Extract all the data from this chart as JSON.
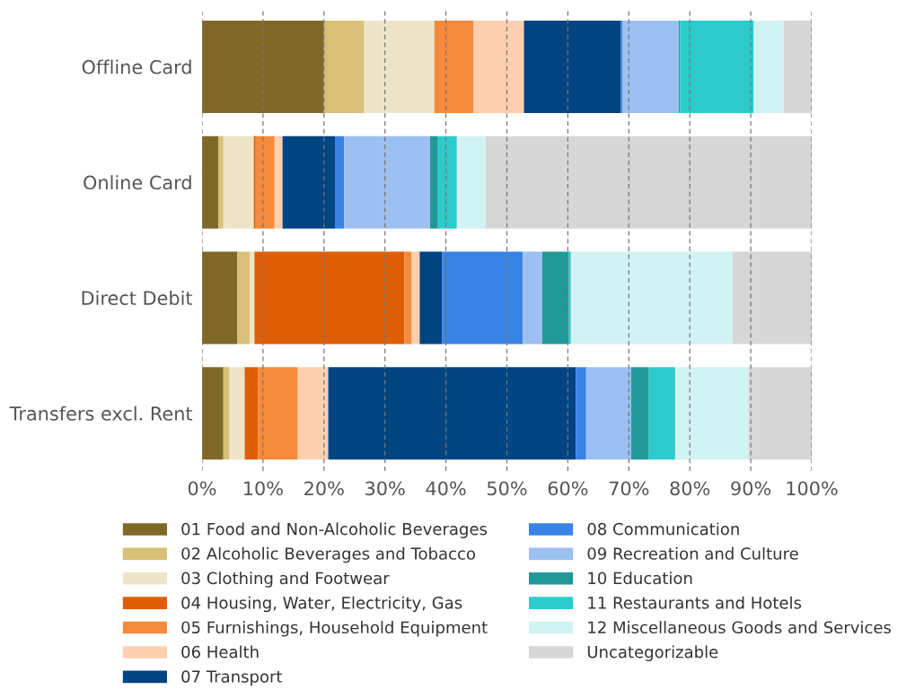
{
  "chart_data": {
    "type": "bar",
    "orientation": "horizontal",
    "stacked": true,
    "categories": [
      "Offline Card",
      "Online Card",
      "Direct Debit",
      "Transfers excl. Rent"
    ],
    "xlim": [
      0,
      100
    ],
    "xticks": [
      {
        "value": 0,
        "label": "0%"
      },
      {
        "value": 10,
        "label": "10%"
      },
      {
        "value": 20,
        "label": "20%"
      },
      {
        "value": 30,
        "label": "30%"
      },
      {
        "value": 40,
        "label": "40%"
      },
      {
        "value": 50,
        "label": "50%"
      },
      {
        "value": 60,
        "label": "60%"
      },
      {
        "value": 70,
        "label": "70%"
      },
      {
        "value": 80,
        "label": "80%"
      },
      {
        "value": 90,
        "label": "90%"
      },
      {
        "value": 100,
        "label": "100%"
      }
    ],
    "grid": "x",
    "legend": "bottom",
    "series": [
      {
        "name": "01 Food and Non-Alcoholic Beverages",
        "color": "#806828",
        "values": [
          20.0,
          2.7,
          5.8,
          3.5
        ]
      },
      {
        "name": "02 Alcoholic Beverages and Tobacco",
        "color": "#d9bf78",
        "values": [
          6.6,
          0.8,
          2.0,
          1.0
        ]
      },
      {
        "name": "03 Clothing and Footwear",
        "color": "#eee5c8",
        "values": [
          11.5,
          5.0,
          0.8,
          2.5
        ]
      },
      {
        "name": "04 Housing, Water, Electricity, Gas",
        "color": "#de5e08",
        "values": [
          0,
          0.3,
          24.6,
          2.2
        ]
      },
      {
        "name": "05 Furnishings, Household Equipment",
        "color": "#f68a3c",
        "values": [
          6.4,
          3.1,
          1.2,
          6.5
        ]
      },
      {
        "name": "06 Health",
        "color": "#fccfb0",
        "values": [
          8.3,
          1.3,
          1.3,
          5.0
        ]
      },
      {
        "name": "07 Transport",
        "color": "#014482",
        "values": [
          15.9,
          8.6,
          3.7,
          40.6
        ]
      },
      {
        "name": "08 Communication",
        "color": "#3a83e6",
        "values": [
          0.3,
          1.5,
          13.2,
          1.7
        ]
      },
      {
        "name": "09 Recreation and Culture",
        "color": "#9dc0f2",
        "values": [
          9.2,
          14.1,
          3.2,
          7.4
        ]
      },
      {
        "name": "10 Education",
        "color": "#229898",
        "values": [
          0.2,
          1.3,
          4.3,
          2.9
        ]
      },
      {
        "name": "11 Restaurants and Hotels",
        "color": "#2dcbcc",
        "values": [
          12.1,
          3.1,
          0.4,
          4.3
        ]
      },
      {
        "name": "12 Miscellaneous Goods and Services",
        "color": "#d2f3f4",
        "values": [
          4.9,
          4.7,
          26.5,
          12.0
        ]
      },
      {
        "name": "Uncategorizable",
        "color": "#d7d7d7",
        "values": [
          4.6,
          53.5,
          13.0,
          10.4
        ]
      }
    ]
  }
}
